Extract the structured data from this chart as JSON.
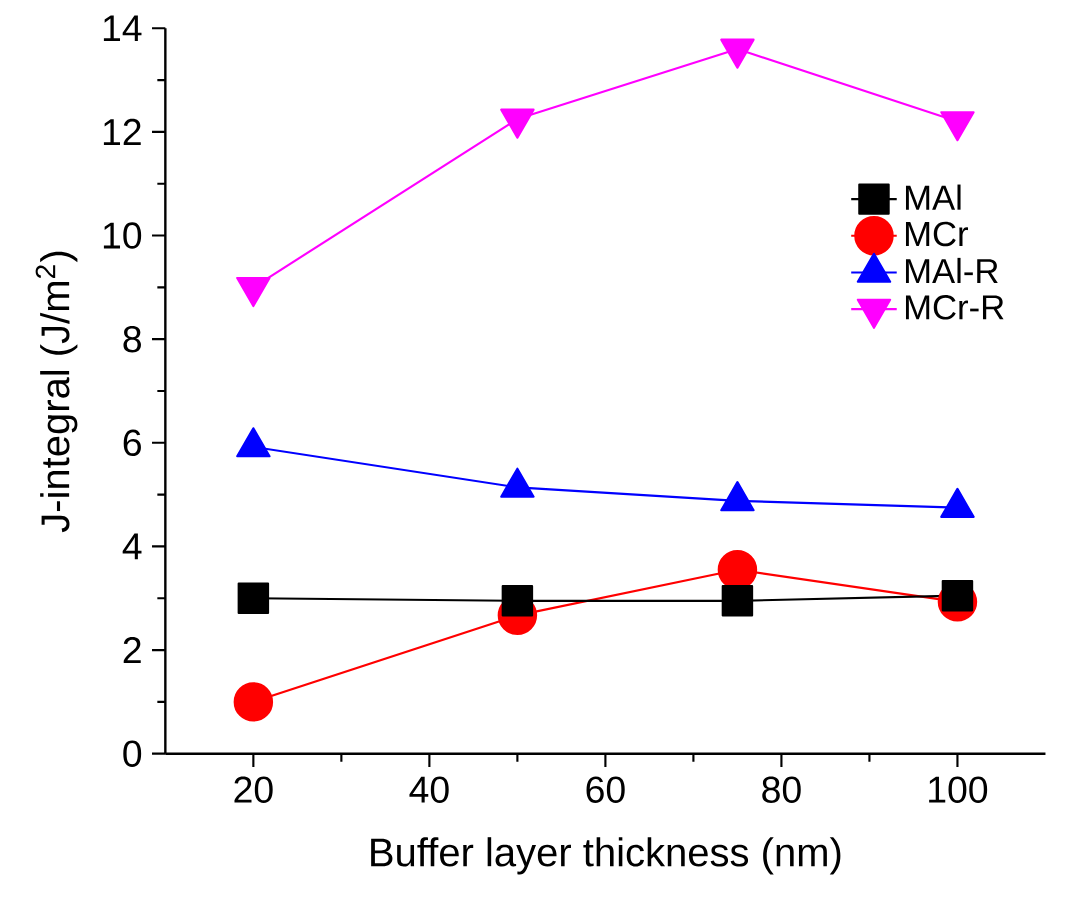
{
  "chart_data": {
    "type": "line",
    "xlabel": "Buffer layer thickness (nm)",
    "ylabel": "J-integral (J/m$^{2}$)",
    "x": [
      20,
      50,
      75,
      100
    ],
    "series": [
      {
        "name": "MAl",
        "color": "#000000",
        "marker": "square",
        "values": [
          3.0,
          2.95,
          2.95,
          3.05
        ]
      },
      {
        "name": "MCr",
        "color": "#ff0000",
        "marker": "circle",
        "values": [
          1.0,
          2.67,
          3.55,
          2.93
        ]
      },
      {
        "name": "MAl-R",
        "color": "#0000ff",
        "marker": "triangle",
        "values": [
          5.92,
          5.14,
          4.88,
          4.75
        ]
      },
      {
        "name": "MCr-R",
        "color": "#ff00ff",
        "marker": "triangle down",
        "values": [
          9.0,
          12.25,
          13.6,
          12.2
        ]
      }
    ],
    "xlim": [
      10,
      110
    ],
    "ylim": [
      0,
      14
    ],
    "xticks": [
      20,
      40,
      60,
      80,
      100
    ],
    "yticks": [
      0,
      2,
      4,
      6,
      8,
      10,
      12,
      14
    ],
    "grid": false,
    "legend": "top right",
    "line_style": "solid"
  }
}
